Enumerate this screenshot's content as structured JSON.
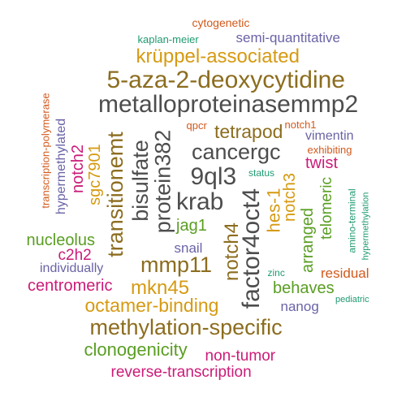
{
  "colors": {
    "gray": "#4d4d4d",
    "brown": "#8c6d1f",
    "orange": "#d69a12",
    "green": "#5a9e23",
    "purple": "#6a63a6",
    "magenta": "#cc1b78",
    "rust": "#d2591c",
    "teal": "#1f9a72"
  },
  "words": [
    {
      "text": "cytogenetic",
      "color": "rust",
      "vertical": false
    },
    {
      "text": "kaplan-meier",
      "color": "teal",
      "vertical": false
    },
    {
      "text": "semi-quantitative",
      "color": "purple",
      "vertical": false
    },
    {
      "text": "krüppel-associated",
      "color": "orange",
      "vertical": false
    },
    {
      "text": "5-aza-2-deoxycytidine",
      "color": "brown",
      "vertical": false
    },
    {
      "text": "transcription-polymerase",
      "color": "rust",
      "vertical": true
    },
    {
      "text": "metalloproteinasemmp2",
      "color": "gray",
      "vertical": false
    },
    {
      "text": "hypermethylated",
      "color": "purple",
      "vertical": true
    },
    {
      "text": "qpcr",
      "color": "rust",
      "vertical": false
    },
    {
      "text": "notch1",
      "color": "rust",
      "vertical": false
    },
    {
      "text": "tetrapod",
      "color": "brown",
      "vertical": false
    },
    {
      "text": "vimentin",
      "color": "purple",
      "vertical": false
    },
    {
      "text": "notch2",
      "color": "magenta",
      "vertical": true
    },
    {
      "text": "transitionemt",
      "color": "brown",
      "vertical": true
    },
    {
      "text": "bisulfate",
      "color": "gray",
      "vertical": true
    },
    {
      "text": "protein382",
      "color": "gray",
      "vertical": true
    },
    {
      "text": "cancergc",
      "color": "gray",
      "vertical": false
    },
    {
      "text": "exhibiting",
      "color": "rust",
      "vertical": false
    },
    {
      "text": "sgc7901",
      "color": "orange",
      "vertical": true
    },
    {
      "text": "twist",
      "color": "magenta",
      "vertical": false
    },
    {
      "text": "9ql3",
      "color": "gray",
      "vertical": false
    },
    {
      "text": "status",
      "color": "teal",
      "vertical": false
    },
    {
      "text": "notch3",
      "color": "orange",
      "vertical": true
    },
    {
      "text": "telomeric",
      "color": "green",
      "vertical": true
    },
    {
      "text": "amino-terminal",
      "color": "teal",
      "vertical": true
    },
    {
      "text": "hypermethylation",
      "color": "teal",
      "vertical": true
    },
    {
      "text": "krab",
      "color": "gray",
      "vertical": false
    },
    {
      "text": "hes-1",
      "color": "orange",
      "vertical": true
    },
    {
      "text": "arranged",
      "color": "green",
      "vertical": true
    },
    {
      "text": "jag1",
      "color": "green",
      "vertical": false
    },
    {
      "text": "factor4oct4",
      "color": "gray",
      "vertical": true
    },
    {
      "text": "notch4",
      "color": "brown",
      "vertical": true
    },
    {
      "text": "nucleolus",
      "color": "green",
      "vertical": false
    },
    {
      "text": "snail",
      "color": "purple",
      "vertical": false
    },
    {
      "text": "c2h2",
      "color": "magenta",
      "vertical": false
    },
    {
      "text": "mmp11",
      "color": "brown",
      "vertical": false
    },
    {
      "text": "individually",
      "color": "purple",
      "vertical": false
    },
    {
      "text": "zinc",
      "color": "teal",
      "vertical": false
    },
    {
      "text": "residual",
      "color": "rust",
      "vertical": false
    },
    {
      "text": "centromeric",
      "color": "magenta",
      "vertical": false
    },
    {
      "text": "mkn45",
      "color": "orange",
      "vertical": false
    },
    {
      "text": "behaves",
      "color": "green",
      "vertical": false
    },
    {
      "text": "pediatric",
      "color": "teal",
      "vertical": false
    },
    {
      "text": "octamer-binding",
      "color": "orange",
      "vertical": false
    },
    {
      "text": "nanog",
      "color": "purple",
      "vertical": false
    },
    {
      "text": "methylation-specific",
      "color": "brown",
      "vertical": false
    },
    {
      "text": "clonogenicity",
      "color": "green",
      "vertical": false
    },
    {
      "text": "non-tumor",
      "color": "magenta",
      "vertical": false
    },
    {
      "text": "reverse-transcription",
      "color": "magenta",
      "vertical": false
    }
  ]
}
